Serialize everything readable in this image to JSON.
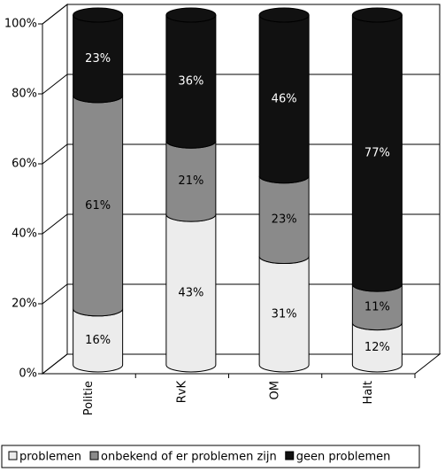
{
  "chart_data": {
    "type": "stacked-cylinder",
    "categories": [
      "Politie",
      "RvK",
      "OM",
      "Halt"
    ],
    "series": [
      {
        "name": "problemen",
        "color": "#ececec",
        "values": [
          16,
          43,
          31,
          12
        ],
        "value_labels": [
          "16%",
          "43%",
          "31%",
          "12%"
        ]
      },
      {
        "name": "onbekend of er problemen zijn",
        "color": "#8a8a8a",
        "values": [
          61,
          21,
          23,
          11
        ],
        "value_labels": [
          "61%",
          "21%",
          "23%",
          "11%"
        ]
      },
      {
        "name": "geen problemen",
        "color": "#111111",
        "values": [
          23,
          36,
          46,
          77
        ],
        "value_labels": [
          "23%",
          "36%",
          "46%",
          "77%"
        ]
      }
    ],
    "ylim": [
      0,
      100
    ],
    "yticks": [
      {
        "value": 0,
        "label": "0%"
      },
      {
        "value": 20,
        "label": "20%"
      },
      {
        "value": 40,
        "label": "40%"
      },
      {
        "value": 60,
        "label": "60%"
      },
      {
        "value": 80,
        "label": "80%"
      },
      {
        "value": 100,
        "label": "100%"
      }
    ],
    "grid": true,
    "legend": "bottom"
  }
}
